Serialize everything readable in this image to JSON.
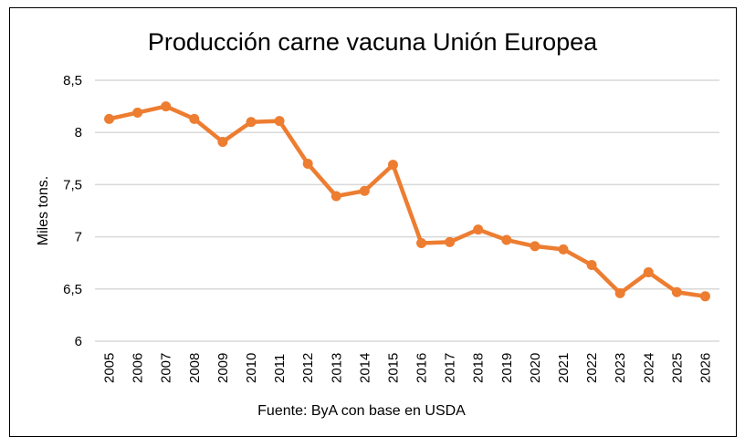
{
  "chart_data": {
    "type": "line",
    "title": "Producción carne vacuna Unión Europea",
    "xlabel": "",
    "ylabel": "Miles tons.",
    "source": "Fuente: ByA con base en USDA",
    "ylim": [
      6,
      8.5
    ],
    "yticks": [
      6,
      6.5,
      7,
      7.5,
      8,
      8.5
    ],
    "ytick_labels": [
      "6",
      "6,5",
      "7",
      "7,5",
      "8",
      "8,5"
    ],
    "grid": true,
    "legend": "none",
    "line_color": "#ED7D31",
    "categories": [
      "2005",
      "2006",
      "2007",
      "2008",
      "2009",
      "2010",
      "2011",
      "2012",
      "2013",
      "2014",
      "2015",
      "2016",
      "2017",
      "2018",
      "2019",
      "2020",
      "2021",
      "2022",
      "2023",
      "2024",
      "2025",
      "2026"
    ],
    "series": [
      {
        "name": "Producción",
        "values": [
          8.13,
          8.19,
          8.25,
          8.13,
          7.91,
          8.1,
          8.11,
          7.7,
          7.39,
          7.44,
          7.69,
          6.94,
          6.95,
          7.07,
          6.97,
          6.91,
          6.88,
          6.73,
          6.46,
          6.66,
          6.47,
          6.43
        ]
      }
    ]
  }
}
